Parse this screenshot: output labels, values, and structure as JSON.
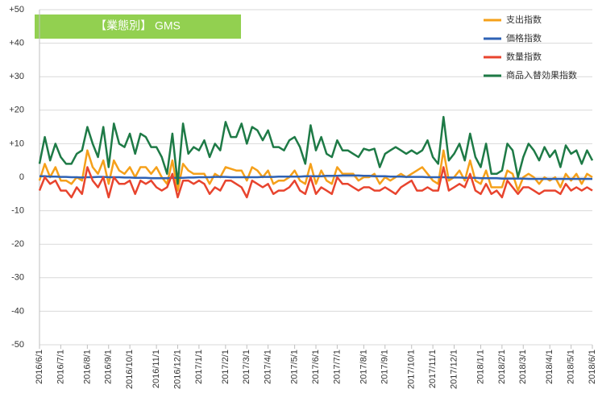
{
  "chart_data": {
    "type": "line",
    "title": "【業態別】 GMS",
    "categories": [
      "2016/6/1",
      null,
      null,
      null,
      "2016/7/1",
      null,
      null,
      null,
      null,
      "2016/8/1",
      null,
      null,
      null,
      "2016/9/1",
      null,
      null,
      null,
      "2016/10/1",
      null,
      null,
      null,
      null,
      "2016/11/1",
      null,
      null,
      null,
      "2016/12/1",
      null,
      null,
      null,
      "2017/1/1",
      null,
      null,
      null,
      null,
      "2017/2/1",
      null,
      null,
      null,
      "2017/3/1",
      null,
      null,
      null,
      "2017/4/1",
      null,
      null,
      null,
      null,
      "2017/5/1",
      null,
      null,
      null,
      "2017/6/1",
      null,
      null,
      null,
      "2017/7/1",
      null,
      null,
      null,
      null,
      "2017/8/1",
      null,
      null,
      null,
      "2017/9/1",
      null,
      null,
      null,
      null,
      "2017/10/1",
      null,
      null,
      null,
      "2017/11/1",
      null,
      null,
      null,
      "2017/12/1",
      null,
      null,
      null,
      null,
      "2018/1/1",
      null,
      null,
      null,
      "2018/2/1",
      null,
      null,
      null,
      "2018/3/1",
      null,
      null,
      null,
      null,
      "2018/4/1",
      null,
      null,
      null,
      "2018/5/1",
      null,
      null,
      null,
      "2018/6/1"
    ],
    "series": [
      {
        "name": "支出指数",
        "color": "#f5a01a",
        "values": [
          -1,
          4,
          0,
          3,
          -1,
          -1,
          -2,
          0,
          -1,
          8,
          3,
          1,
          5,
          -2,
          5,
          2,
          1,
          3,
          0,
          3,
          3,
          1,
          3,
          0,
          -2,
          5,
          -4,
          4,
          2,
          1,
          1,
          1,
          -2,
          1,
          0,
          3,
          2.5,
          2,
          2,
          -1,
          3,
          2,
          0,
          2,
          -2,
          -1,
          -1,
          0,
          2,
          -1,
          -2,
          4,
          -2,
          2,
          -1,
          -2,
          3,
          1,
          1,
          1,
          -1,
          0,
          0,
          1,
          -2,
          0,
          -1,
          0,
          1,
          0,
          1,
          2,
          3,
          1,
          -1,
          -2,
          8,
          -1,
          0,
          2,
          -1,
          5,
          -1,
          -2,
          2,
          -3,
          -3,
          -3,
          2,
          1,
          -4,
          0,
          1,
          0,
          -2,
          0,
          -1,
          0,
          -3,
          1,
          -1,
          1,
          -2,
          1,
          0
        ]
      },
      {
        "name": "価格指数",
        "color": "#2e62b5",
        "values": [
          0.3,
          0.3,
          0.2,
          0.2,
          0.1,
          0.1,
          0,
          0,
          -0.1,
          0,
          0,
          0.1,
          0.1,
          0,
          0,
          0,
          -0.1,
          -0.1,
          -0.2,
          -0.2,
          -0.2,
          -0.3,
          -0.3,
          -0.3,
          -0.3,
          -0.2,
          -0.2,
          -0.2,
          -0.1,
          -0.1,
          0,
          0,
          0,
          0.1,
          0.1,
          0.1,
          0,
          0,
          0,
          0,
          0,
          0,
          0.1,
          0.1,
          0.1,
          0.2,
          0.2,
          0.2,
          0.2,
          0.2,
          0.3,
          0.3,
          0.3,
          0.3,
          0.4,
          0.4,
          0.4,
          0.5,
          0.5,
          0.5,
          0.5,
          0.4,
          0.4,
          0.3,
          0.3,
          0.3,
          0.2,
          0.2,
          0.2,
          0.1,
          0.1,
          0.1,
          0.1,
          0,
          0,
          0,
          0,
          -0.1,
          -0.1,
          -0.1,
          -0.2,
          -0.2,
          -0.2,
          -0.3,
          -0.3,
          -0.3,
          -0.3,
          -0.4,
          -0.4,
          -0.4,
          -0.4,
          -0.4,
          -0.5,
          -0.5,
          -0.5,
          -0.5,
          -0.5,
          -0.5,
          -0.5,
          -0.5,
          -0.5,
          -0.5,
          -0.5,
          -0.5,
          -0.5
        ]
      },
      {
        "name": "数量指数",
        "color": "#e8442e",
        "values": [
          -4,
          0,
          -2,
          -1,
          -4,
          -4,
          -6,
          -3,
          -5,
          3,
          -1,
          -3,
          0,
          -6,
          0,
          -2,
          -2,
          -1,
          -5,
          -1,
          -2,
          -1,
          -3,
          -4,
          -3,
          1,
          -6,
          -1,
          -1,
          -2,
          -1,
          -2,
          -5,
          -3,
          -4,
          -1,
          -1,
          -2,
          -3,
          -6,
          -1,
          -2,
          -3,
          -2,
          -5,
          -4,
          -4,
          -3,
          -1,
          -4,
          -5,
          0,
          -5,
          -3,
          -4,
          -5,
          0,
          -2,
          -2,
          -3,
          -4,
          -3,
          -3,
          -4,
          -4,
          -3,
          -4,
          -5,
          -3,
          -2,
          -1,
          -4,
          -4,
          -3,
          -4,
          -4,
          3,
          -4,
          -3,
          -2,
          -3,
          1,
          -4,
          -5,
          -2,
          -5,
          -4,
          -6,
          -1,
          -3,
          -5,
          -3,
          -3,
          -4,
          -5,
          -4,
          -4,
          -4,
          -5,
          -2,
          -4,
          -3,
          -4,
          -3,
          -4
        ]
      },
      {
        "name": "商品入替効果指数",
        "color": "#1e7a46",
        "values": [
          4,
          12,
          5,
          10,
          6,
          4,
          4,
          7,
          8,
          15,
          10,
          6,
          15,
          3,
          16,
          10,
          9,
          13,
          7,
          13,
          12,
          9,
          9,
          6,
          1,
          13,
          -2,
          16,
          7,
          9,
          8,
          11,
          6,
          10,
          8,
          16.5,
          12,
          12,
          16,
          10,
          15,
          14,
          11,
          14,
          9,
          9,
          8,
          11,
          12,
          9,
          4,
          15.5,
          8,
          12,
          7,
          6,
          11,
          8,
          8,
          7,
          6,
          8.5,
          8,
          8.5,
          3,
          7,
          8,
          9,
          8,
          7,
          8,
          7,
          8,
          11,
          6,
          4,
          18,
          5,
          7,
          10,
          5,
          13,
          6,
          3,
          10,
          1,
          1,
          2,
          10,
          8,
          0,
          6,
          10,
          8,
          5,
          9,
          6,
          8,
          3,
          9.5,
          7,
          8,
          4,
          8,
          5
        ]
      }
    ],
    "ylim": [
      -50,
      50
    ],
    "yticks": [
      {
        "value": 50,
        "label": "+50"
      },
      {
        "value": 40,
        "label": "+40"
      },
      {
        "value": 30,
        "label": "+30"
      },
      {
        "value": 20,
        "label": "+20"
      },
      {
        "value": 10,
        "label": "+10"
      },
      0,
      -10,
      -20,
      -30,
      -40,
      -50
    ],
    "grid": true,
    "legend": "upper right"
  }
}
